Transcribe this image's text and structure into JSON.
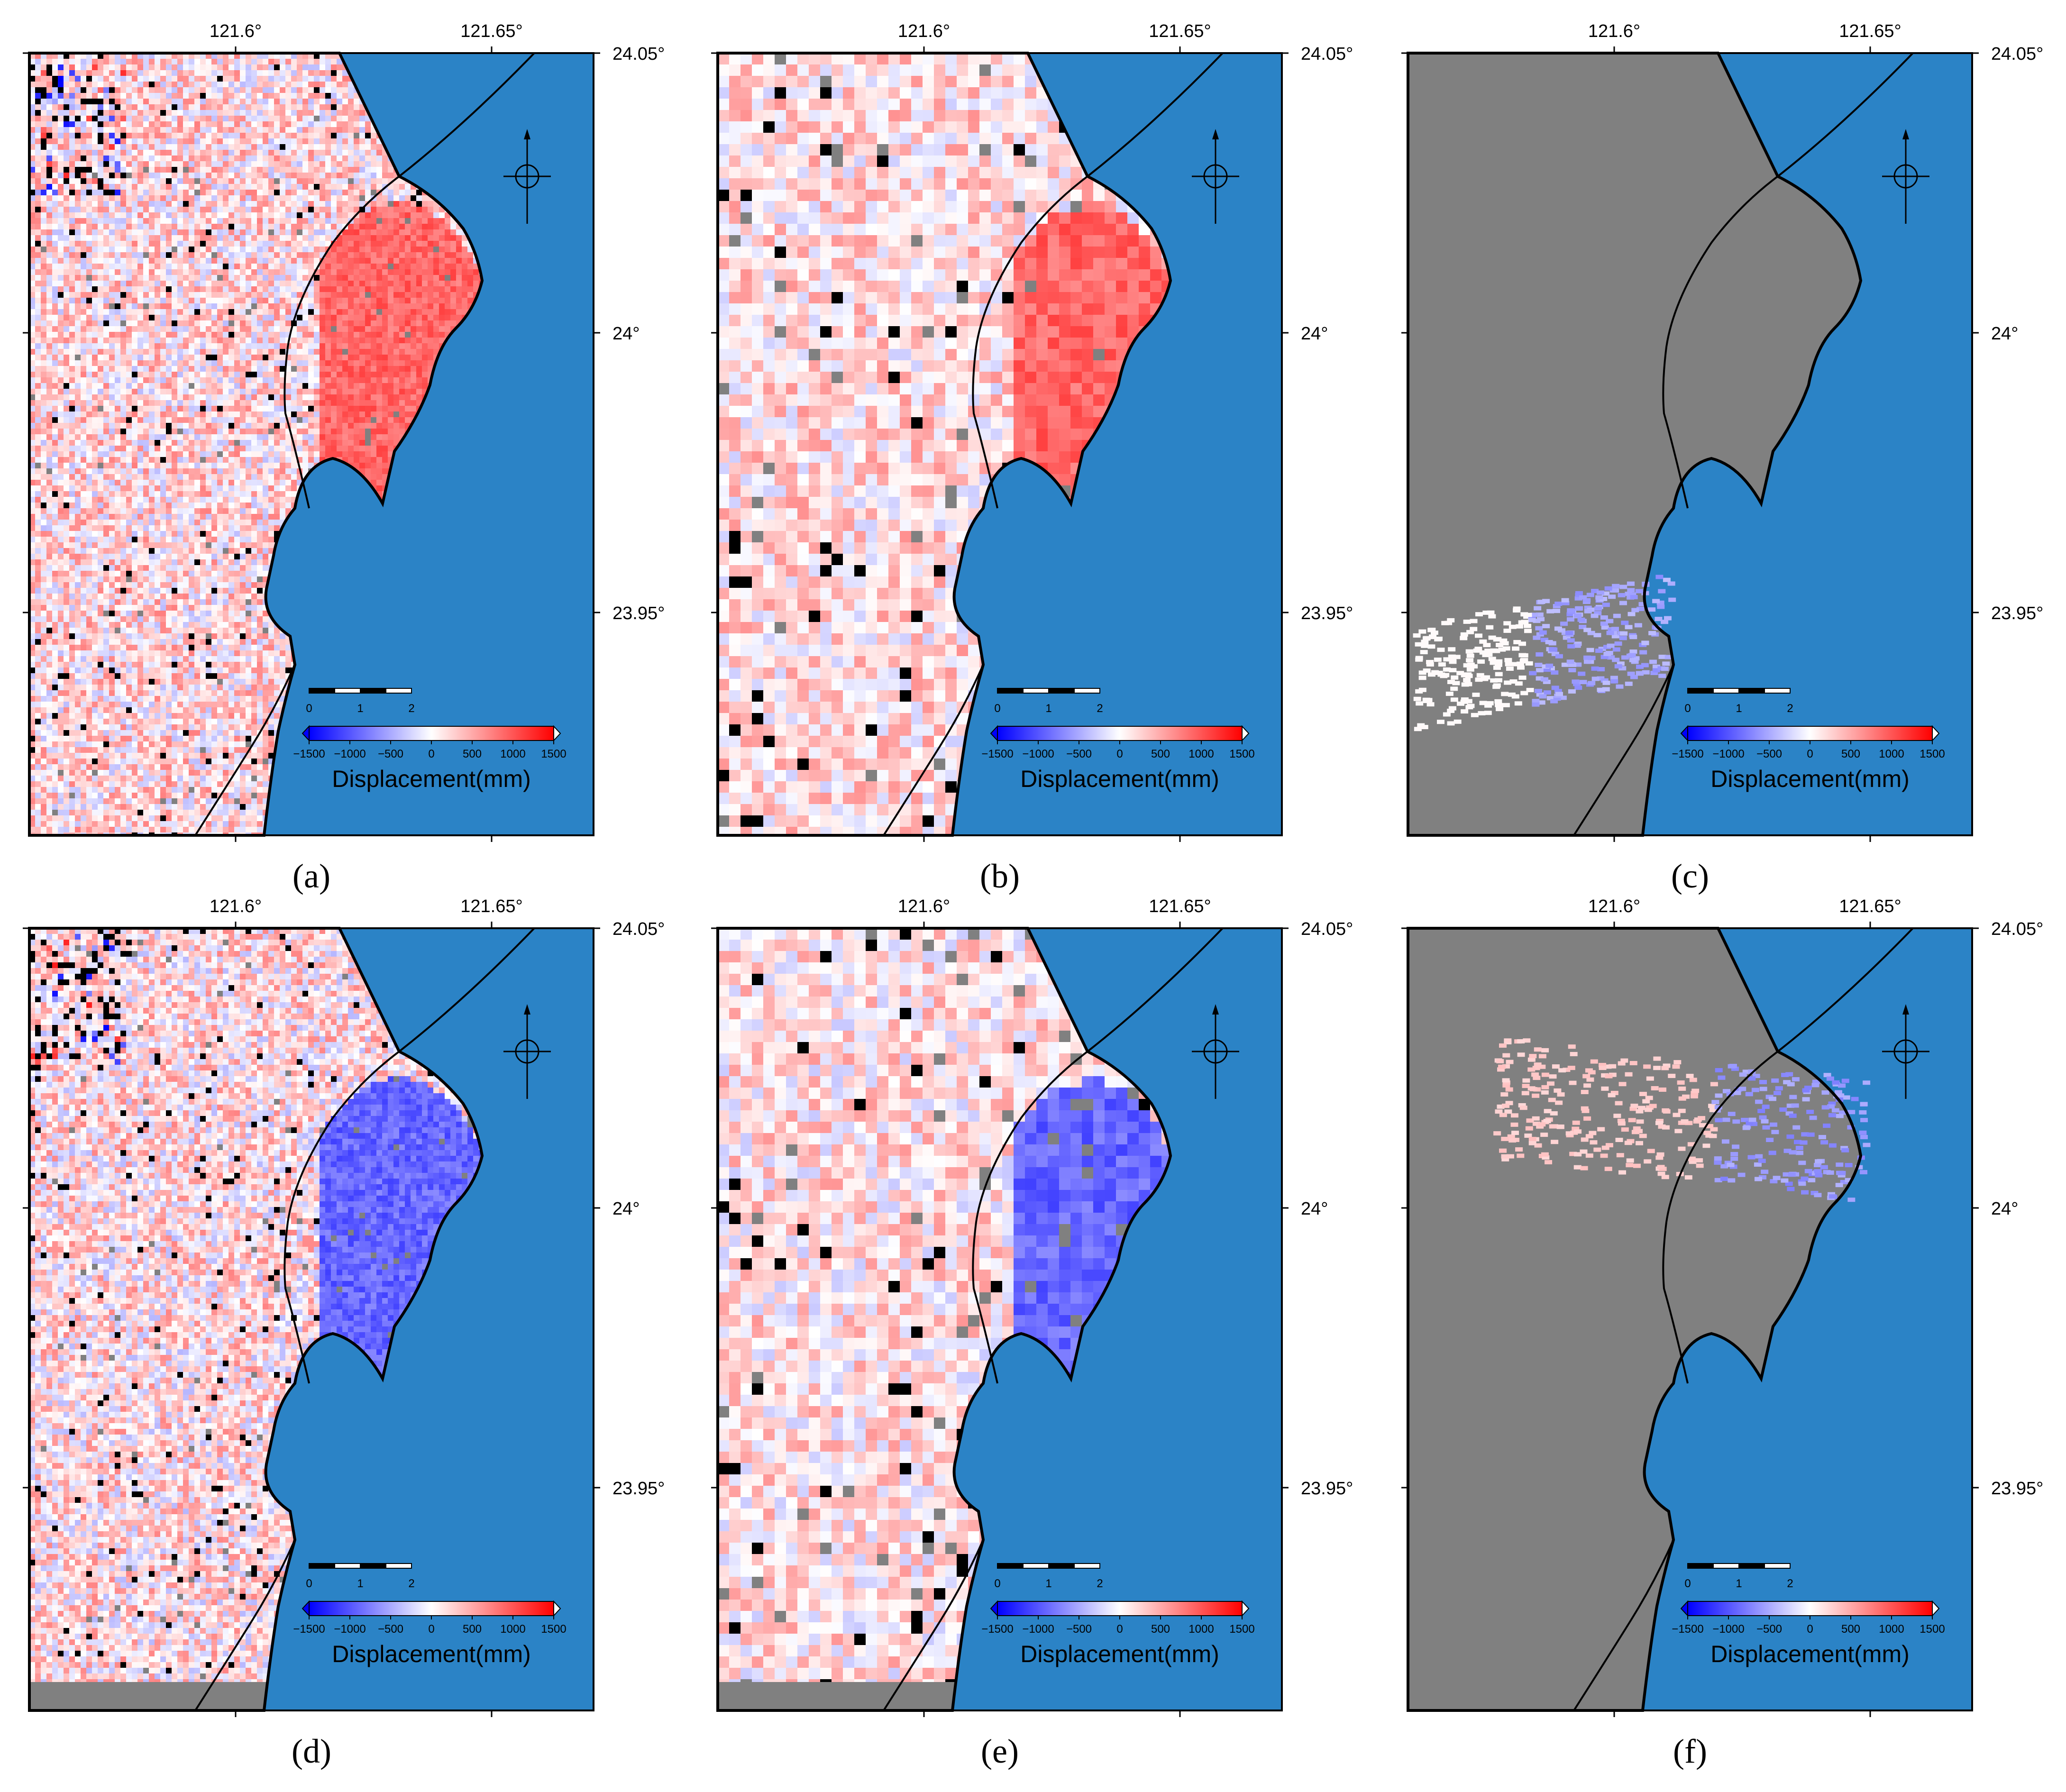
{
  "figure": {
    "axes": {
      "x_ticks": [
        "121.6°",
        "121.65°"
      ],
      "y_ticks": [
        "24.05°",
        "24°",
        "23.95°"
      ]
    },
    "scale_bar": {
      "ticks": [
        "0",
        "1",
        "2"
      ]
    },
    "colorbar": {
      "title": "Displacement(mm)",
      "ticks": [
        "−1500",
        "−1000",
        "−500",
        "0",
        "500",
        "1000",
        "1500"
      ],
      "colors": {
        "low": "#0000ff",
        "mid": "#ffffff",
        "high": "#ff0000"
      }
    },
    "colors": {
      "sea": "#2b83c6",
      "no_data": "#808080",
      "coastline": "#000000"
    },
    "panels": [
      {
        "id": "a",
        "label": "(a)",
        "style": "fine",
        "offshore_sign": "positive"
      },
      {
        "id": "b",
        "label": "(b)",
        "style": "coarse",
        "offshore_sign": "positive"
      },
      {
        "id": "c",
        "label": "(c)",
        "style": "sparse",
        "offshore_sign": "none",
        "sparse_band": "south"
      },
      {
        "id": "d",
        "label": "(d)",
        "style": "fine",
        "offshore_sign": "negative"
      },
      {
        "id": "e",
        "label": "(e)",
        "style": "coarse",
        "offshore_sign": "negative"
      },
      {
        "id": "f",
        "label": "(f)",
        "style": "sparse",
        "offshore_sign": "none",
        "sparse_band": "north"
      }
    ]
  }
}
